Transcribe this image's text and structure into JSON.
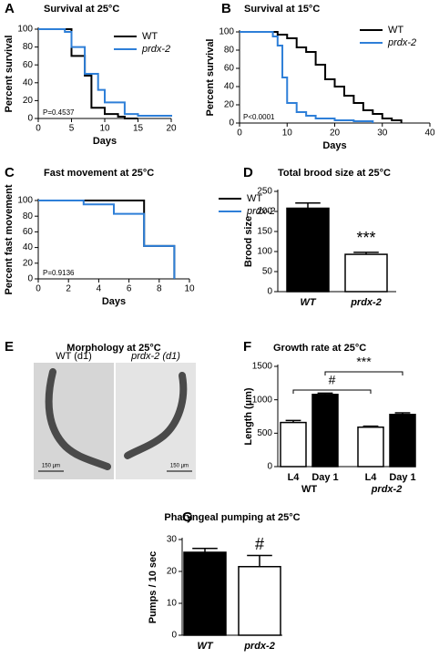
{
  "chart_data": [
    {
      "type": "step",
      "panel": "A",
      "title": "Survival at 25°C",
      "xlabel": "Days",
      "ylabel": "Percent survival",
      "annotation": "P=0.4537",
      "xlim": [
        0,
        20
      ],
      "ylim": [
        0,
        100
      ],
      "xticks": [
        0,
        5,
        10,
        15,
        20
      ],
      "yticks": [
        0,
        20,
        40,
        60,
        80,
        100
      ],
      "series": [
        {
          "name": "WT",
          "color": "#000000",
          "x": [
            0,
            5,
            7,
            8,
            10,
            12,
            13,
            15
          ],
          "values": [
            100,
            70,
            48,
            12,
            5,
            2,
            0,
            0
          ]
        },
        {
          "name": "prdx-2",
          "color": "#2e7fd8",
          "x": [
            0,
            4,
            5,
            7,
            9,
            10,
            13,
            15,
            20
          ],
          "values": [
            100,
            97,
            80,
            50,
            32,
            18,
            5,
            3,
            2
          ]
        }
      ]
    },
    {
      "type": "step",
      "panel": "B",
      "title": "Survival at 15°C",
      "xlabel": "Days",
      "ylabel": "Percent survival",
      "annotation": "P<0.0001",
      "xlim": [
        0,
        40
      ],
      "ylim": [
        0,
        100
      ],
      "xticks": [
        0,
        10,
        20,
        30,
        40
      ],
      "yticks": [
        0,
        20,
        40,
        60,
        80,
        100
      ],
      "series": [
        {
          "name": "WT",
          "color": "#000000",
          "x": [
            0,
            8,
            10,
            12,
            14,
            16,
            18,
            20,
            22,
            24,
            26,
            28,
            30,
            32,
            34
          ],
          "values": [
            100,
            97,
            93,
            83,
            78,
            64,
            48,
            40,
            30,
            22,
            14,
            10,
            5,
            3,
            0
          ]
        },
        {
          "name": "prdx-2",
          "color": "#2e7fd8",
          "x": [
            0,
            6,
            7,
            8,
            9,
            10,
            12,
            14,
            16,
            20,
            24,
            28
          ],
          "values": [
            100,
            100,
            95,
            85,
            50,
            22,
            12,
            8,
            5,
            3,
            2,
            0
          ]
        }
      ]
    },
    {
      "type": "step",
      "panel": "C",
      "title": "Fast movement at 25°C",
      "xlabel": "Days",
      "ylabel": "Percent fast movement",
      "annotation": "P=0.9136",
      "xlim": [
        0,
        10
      ],
      "ylim": [
        0,
        100
      ],
      "xticks": [
        0,
        2,
        4,
        6,
        8,
        10
      ],
      "yticks": [
        0,
        20,
        40,
        60,
        80,
        100
      ],
      "series": [
        {
          "name": "WT",
          "color": "#000000",
          "x": [
            0,
            7,
            9
          ],
          "values": [
            100,
            42,
            0
          ]
        },
        {
          "name": "prdx-2",
          "color": "#2e7fd8",
          "x": [
            0,
            3,
            5,
            7,
            9
          ],
          "values": [
            100,
            95,
            83,
            42,
            0
          ]
        }
      ]
    },
    {
      "type": "bar",
      "panel": "D",
      "title": "Total brood size at 25°C",
      "ylabel": "Brood size",
      "categories": [
        "WT",
        "prdx-2"
      ],
      "values": [
        208,
        93
      ],
      "errors": [
        13,
        5
      ],
      "colors": [
        "#000000",
        "#ffffff"
      ],
      "annotations": [
        "***"
      ],
      "ylim": [
        0,
        250
      ],
      "yticks": [
        0,
        50,
        100,
        150,
        200,
        250
      ]
    },
    {
      "type": "bar",
      "panel": "F",
      "title": "Growth rate at 25°C",
      "ylabel": "Length (µm)",
      "categories": [
        "L4",
        "Day 1",
        "L4",
        "Day 1"
      ],
      "groups": [
        "WT",
        "prdx-2"
      ],
      "values": [
        660,
        1080,
        590,
        780
      ],
      "errors": [
        30,
        20,
        15,
        25
      ],
      "colors": [
        "#ffffff",
        "#000000",
        "#ffffff",
        "#000000"
      ],
      "annotations": [
        "#",
        "***"
      ],
      "ylim": [
        0,
        1500
      ],
      "yticks": [
        0,
        500,
        1000,
        1500
      ]
    },
    {
      "type": "bar",
      "panel": "G",
      "title": "Pharyngeal pumping at 25°C",
      "ylabel": "Pumps / 10 sec",
      "categories": [
        "WT",
        "prdx-2"
      ],
      "values": [
        26,
        21.5
      ],
      "errors": [
        1.2,
        3.5
      ],
      "colors": [
        "#000000",
        "#ffffff"
      ],
      "annotations": [
        "#"
      ],
      "ylim": [
        0,
        30
      ],
      "yticks": [
        0,
        10,
        20,
        30
      ]
    }
  ],
  "morphology": {
    "panel": "E",
    "title": "Morphology at 25°C",
    "labels": [
      "WT (d1)",
      "prdx-2 (d1)"
    ],
    "scale": [
      "150 µm",
      "150 µm"
    ]
  }
}
